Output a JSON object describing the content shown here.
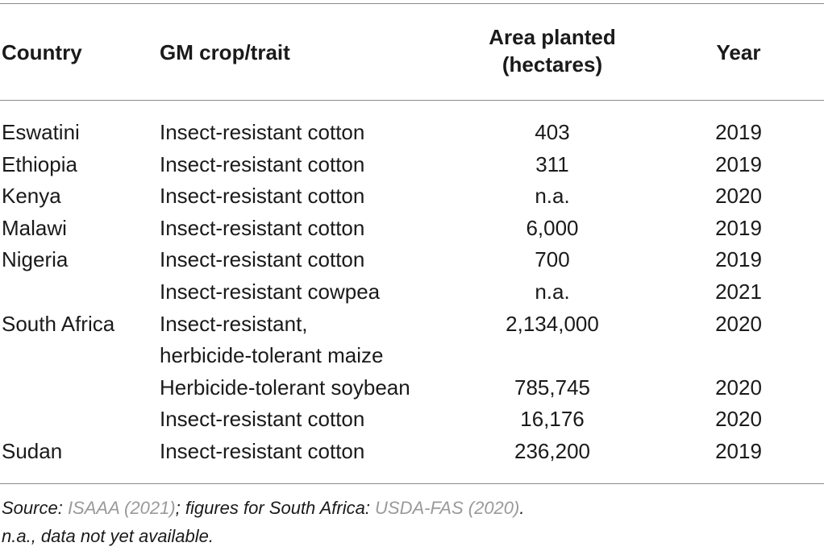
{
  "table": {
    "headers": {
      "country": "Country",
      "crop": "GM crop/trait",
      "area_line1": "Area planted",
      "area_line2": "(hectares)",
      "year": "Year"
    },
    "rows": [
      {
        "country": "Eswatini",
        "crop": "Insect-resistant cotton",
        "area": "403",
        "year": "2019"
      },
      {
        "country": "Ethiopia",
        "crop": "Insect-resistant cotton",
        "area": "311",
        "year": "2019"
      },
      {
        "country": "Kenya",
        "crop": "Insect-resistant cotton",
        "area": "n.a.",
        "year": "2020"
      },
      {
        "country": "Malawi",
        "crop": "Insect-resistant cotton",
        "area": "6,000",
        "year": "2019"
      },
      {
        "country": "Nigeria",
        "crop": "Insect-resistant cotton",
        "area": "700",
        "year": "2019"
      },
      {
        "country": "",
        "crop": "Insect-resistant cowpea",
        "area": "n.a.",
        "year": "2021"
      },
      {
        "country": "South Africa",
        "crop": "Insect-resistant,",
        "crop_line2": "herbicide-tolerant maize",
        "area": "2,134,000",
        "year": "2020"
      },
      {
        "country": "",
        "crop": "Herbicide-tolerant soybean",
        "area": "785,745",
        "year": "2020"
      },
      {
        "country": "",
        "crop": "Insect-resistant cotton",
        "area": "16,176",
        "year": "2020"
      },
      {
        "country": "Sudan",
        "crop": "Insect-resistant cotton",
        "area": "236,200",
        "year": "2019"
      }
    ]
  },
  "footnotes": {
    "source_prefix": "Source: ",
    "source_ref1": "ISAAA (2021)",
    "source_mid": "; figures for South Africa: ",
    "source_ref2": "USDA-FAS (2020)",
    "source_end": ".",
    "na_note": "n.a., data not yet available."
  },
  "colors": {
    "text": "#1a1a1a",
    "link": "#9a9a9a",
    "rule": "#8a8a8a"
  }
}
